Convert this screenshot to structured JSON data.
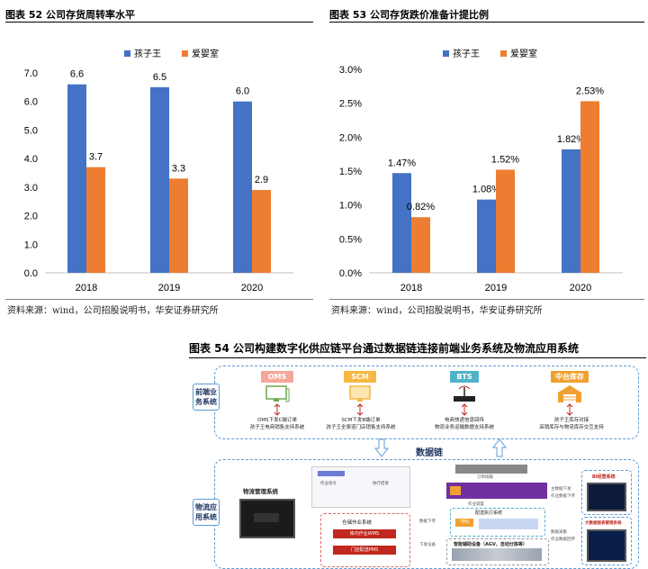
{
  "figures": {
    "fig52": {
      "title": "图表 52  公司存货周转率水平",
      "source": "资料来源：wind，公司招股说明书，华安证券研究所"
    },
    "fig53": {
      "title": "图表 53  公司存货跌价准备计提比例",
      "source": "资料来源：wind，公司招股说明书，华安证券研究所"
    },
    "fig54": {
      "title": "图表 54  公司构建数字化供应链平台通过数据链连接前端业务系统及物流应用系统"
    }
  },
  "colors": {
    "series1": "#4472c4",
    "series2": "#ed7d31",
    "diagram_border": "#5b9bd5",
    "oms": "#f4a79b",
    "scm": "#f5b843",
    "bts": "#4fb3c7",
    "inventory": "#f0a030"
  },
  "chart_data": [
    {
      "type": "bar",
      "categories": [
        "2018",
        "2019",
        "2020"
      ],
      "series": [
        {
          "name": "孩子王",
          "values": [
            6.6,
            6.5,
            6.0
          ],
          "labels": [
            "6.6",
            "6.5",
            "6.0"
          ]
        },
        {
          "name": "爱婴室",
          "values": [
            3.7,
            3.3,
            2.9
          ],
          "labels": [
            "3.7",
            "3.3",
            "2.9"
          ]
        }
      ],
      "ylim": [
        0,
        7.0
      ],
      "yticks": [
        "0.0",
        "1.0",
        "2.0",
        "3.0",
        "4.0",
        "5.0",
        "6.0",
        "7.0"
      ],
      "legend": "top-center",
      "grid": false
    },
    {
      "type": "bar",
      "categories": [
        "2018",
        "2019",
        "2020"
      ],
      "series": [
        {
          "name": "孩子王",
          "values": [
            1.47,
            1.08,
            1.82
          ],
          "labels": [
            "1.47%",
            "1.08%",
            "1.82%"
          ]
        },
        {
          "name": "爱婴室",
          "values": [
            0.82,
            1.52,
            2.53
          ],
          "labels": [
            "0.82%",
            "1.52%",
            "2.53%"
          ]
        }
      ],
      "ylim": [
        0,
        3.0
      ],
      "yticks": [
        "0.0%",
        "0.5%",
        "1.0%",
        "1.5%",
        "2.0%",
        "2.5%",
        "3.0%"
      ],
      "legend": "top-center",
      "grid": false
    }
  ],
  "diagram": {
    "front_label": "前端业务系统",
    "logistics_label": "物流应用系统",
    "chain_label": "数据链",
    "modules": [
      {
        "tag": "OMS",
        "line1": "OMS下发C端订单",
        "line2": "孩子王电商销售支持系统"
      },
      {
        "tag": "SCM",
        "line1": "SCM下发B端订单",
        "line2": "孩子王全渠道门店销售支持系统"
      },
      {
        "tag": "BTS",
        "line1": "电商快递信息回传",
        "line2": "物流业务运输数据支持系统"
      },
      {
        "tag": "中台库存",
        "line1": "孩子王库存对接",
        "line2": "采销库存与物流库存交互支持"
      }
    ],
    "lms_title": "物流管理系统",
    "wms_label": "仓储作业系统",
    "wms_btn1": "库内作业WMS",
    "wms_btn2": "门店配送PMS",
    "tms_label": "TMS",
    "tms_caption": "配送执行系统",
    "equip_label": "智能辅助设备（AGV、自动分拣等）",
    "bi_label": "BI经营系统",
    "bigdata_label": "大数据报表管理系统",
    "tiny": {
      "t1": "作业指令",
      "t2": "执行结果",
      "t3": "数据下传",
      "t4": "下发设备",
      "t5": "主数据下发",
      "t6": "作业数据下传",
      "t7": "数据采集",
      "t8": "作业数据回传",
      "t9": "订单排版",
      "t10": "作业调度"
    }
  }
}
